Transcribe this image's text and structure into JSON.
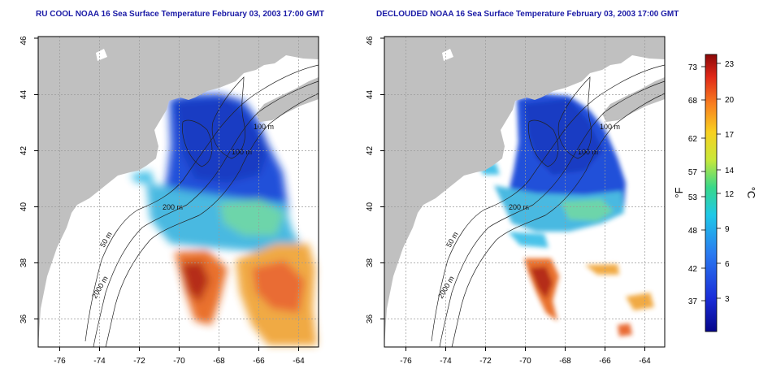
{
  "left_panel": {
    "title": "RU COOL NOAA 16 Sea Surface Temperature February 03, 2003 17:00 GMT",
    "contours": [
      "100 m",
      "100 m",
      "200 m",
      "50 m",
      "2000 m"
    ]
  },
  "right_panel": {
    "title": "DECLOUDED NOAA 16 Sea Surface Temperature February 03, 2003 17:00 GMT",
    "contours": [
      "100 m",
      "100 m",
      "200 m",
      "50 m",
      "2000 m"
    ]
  },
  "x_ticks": [
    "-76",
    "-74",
    "-72",
    "-70",
    "-68",
    "-66",
    "-64"
  ],
  "y_ticks": [
    "36",
    "38",
    "40",
    "42",
    "44",
    "46"
  ],
  "colorbar": {
    "f_label": "°F",
    "c_label": "°C",
    "f_ticks": [
      "73",
      "68",
      "62",
      "57",
      "53",
      "48",
      "42",
      "37"
    ],
    "c_ticks": [
      "23",
      "20",
      "17",
      "14",
      "12",
      "9",
      "6",
      "3"
    ]
  },
  "colors": {
    "title": "#1a1aa6",
    "land": "#c0c0c0",
    "grid": "#9a9a9a"
  }
}
